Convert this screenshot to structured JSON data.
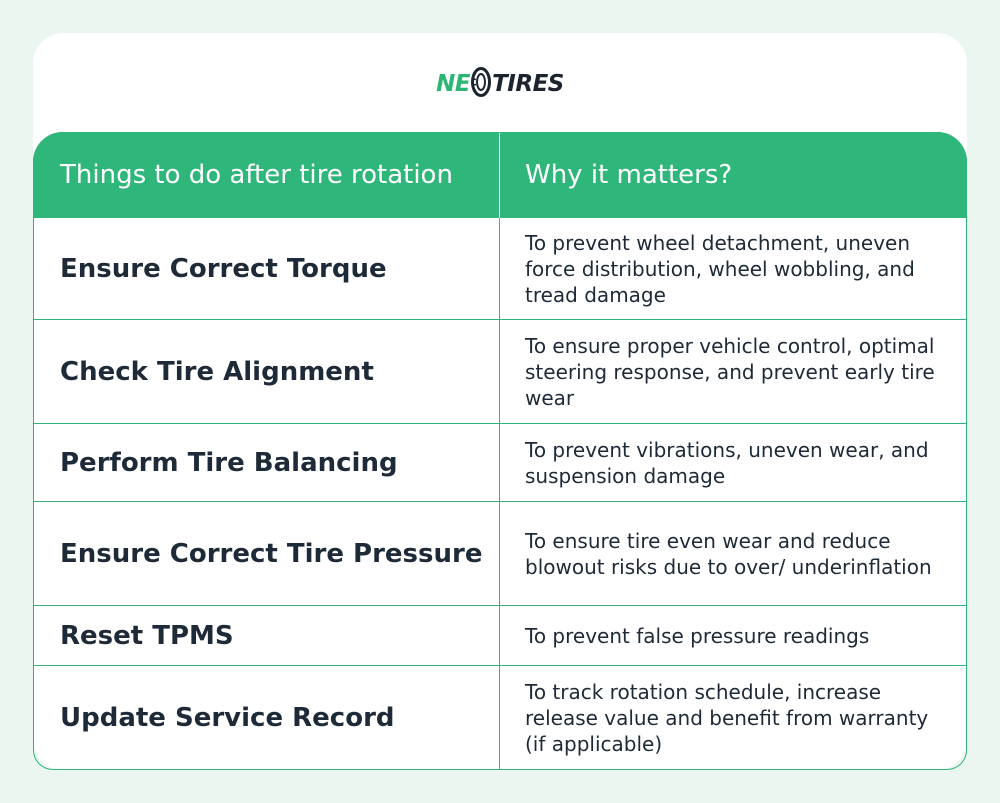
{
  "brand": {
    "logo_ne": "NE",
    "logo_tires": "TIRES",
    "colors": {
      "green": "#2fb67b",
      "dark": "#1c2430"
    }
  },
  "table": {
    "headers": {
      "action": "Things to do after tire rotation",
      "why": "Why it matters?"
    },
    "rows": [
      {
        "action": "Ensure Correct Torque",
        "why": "To prevent wheel detachment, uneven force distribution, wheel wobbling, and tread damage"
      },
      {
        "action": "Check Tire Alignment",
        "why": "To ensure proper vehicle control, optimal steering response, and prevent early tire wear"
      },
      {
        "action": "Perform Tire Balancing",
        "why": "To prevent vibrations, uneven wear, and suspension damage"
      },
      {
        "action": "Ensure Correct Tire Pressure",
        "why": "To ensure tire even wear and reduce blowout risks due to over/ underinflation"
      },
      {
        "action": "Reset TPMS",
        "why": "To prevent false pressure readings"
      },
      {
        "action": "Update Service Record",
        "why": "To track rotation schedule, increase release value and benefit from warranty (if applicable)"
      }
    ]
  }
}
